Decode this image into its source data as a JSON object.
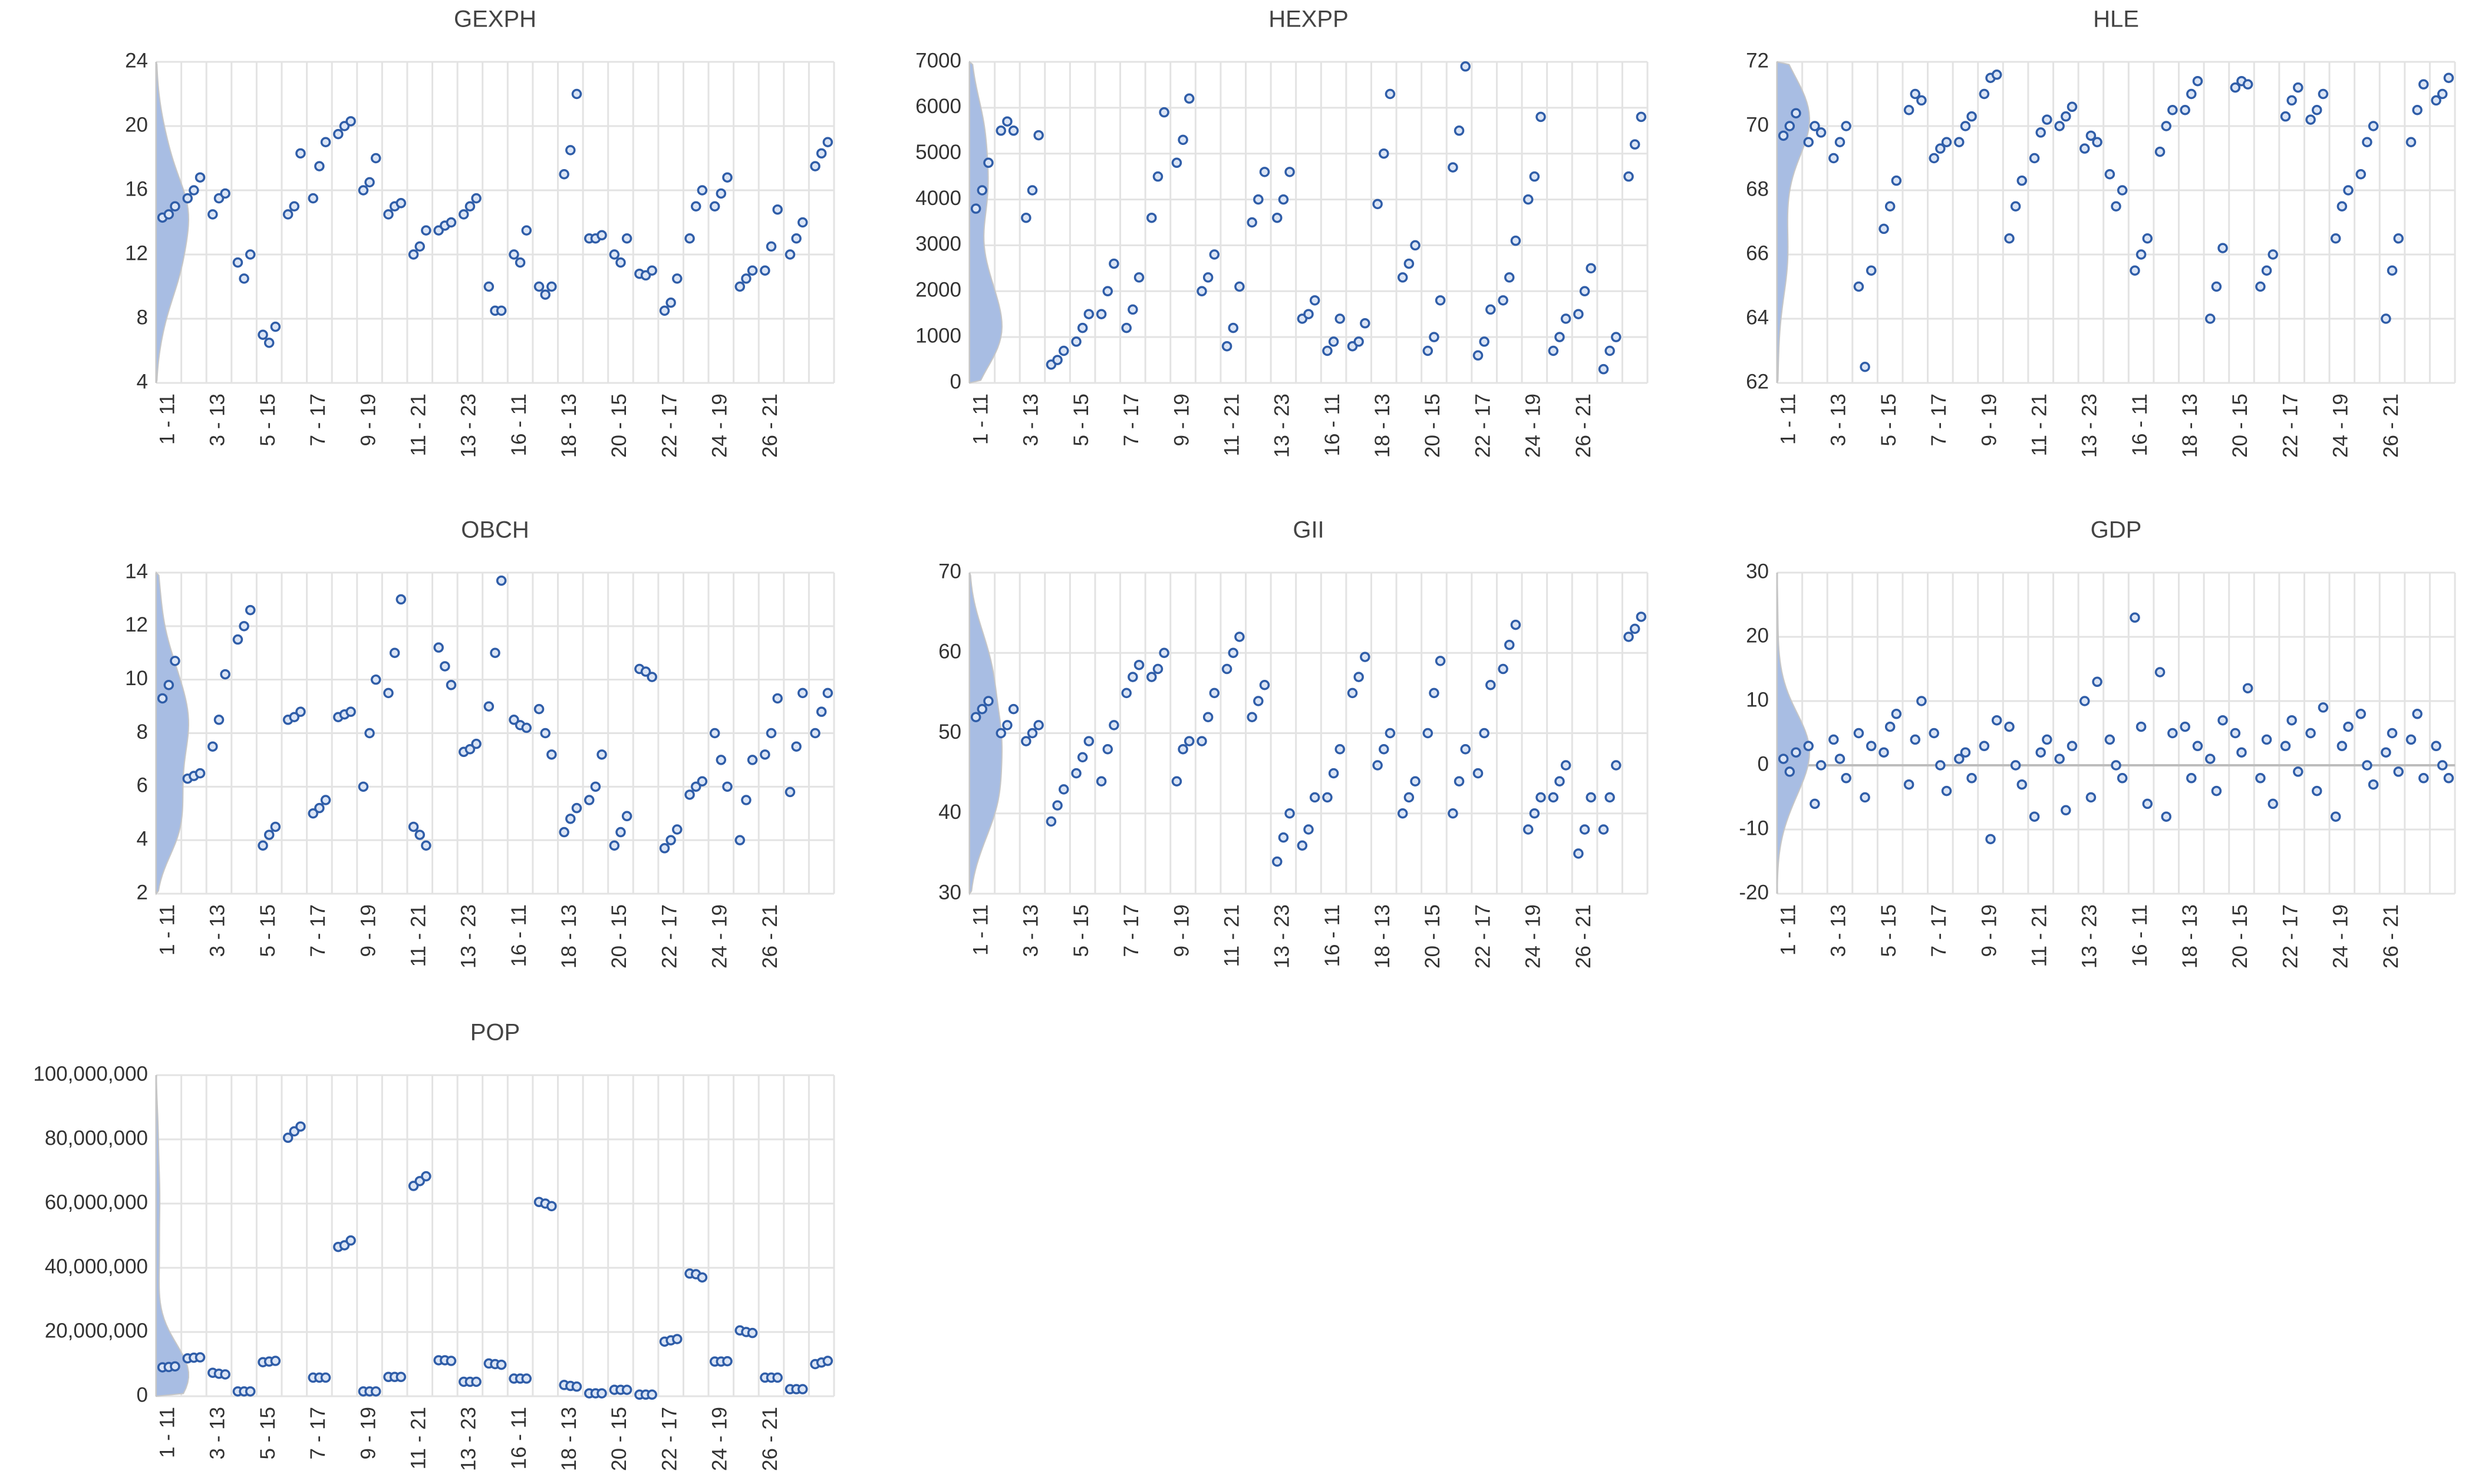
{
  "chart_data": [
    {
      "type": "scatter",
      "title": "GEXPH",
      "categories": [
        "1 - 11",
        null,
        "3 - 13",
        null,
        "5 - 15",
        null,
        "7 - 17",
        null,
        "9 - 19",
        null,
        "11 - 21",
        null,
        "13 - 23",
        null,
        "16 - 11",
        null,
        "18 - 13",
        null,
        "20 - 15",
        null,
        "22 - 17",
        null,
        "24 - 19",
        null,
        "26 - 21",
        null,
        null
      ],
      "values": [
        [
          14.3,
          14.5,
          15
        ],
        [
          15.5,
          16,
          16.8
        ],
        [
          14.5,
          15.5,
          15.8
        ],
        [
          11.5,
          10.5,
          12
        ],
        [
          7,
          6.5,
          7.5
        ],
        [
          14.5,
          15,
          18.3
        ],
        [
          15.5,
          17.5,
          19
        ],
        [
          19.5,
          20,
          20.3
        ],
        [
          16,
          16.5,
          18
        ],
        [
          14.5,
          15,
          15.2
        ],
        [
          12,
          12.5,
          13.5
        ],
        [
          13.5,
          13.8,
          14
        ],
        [
          14.5,
          15,
          15.5
        ],
        [
          10,
          8.5,
          8.5
        ],
        [
          12,
          11.5,
          13.5
        ],
        [
          10,
          9.5,
          10
        ],
        [
          17,
          18.5,
          22
        ],
        [
          13,
          13,
          13.2
        ],
        [
          12,
          11.5,
          13
        ],
        [
          10.8,
          10.7,
          11
        ],
        [
          8.5,
          9,
          10.5
        ],
        [
          13,
          15,
          16
        ],
        [
          15,
          15.8,
          16.8
        ],
        [
          10,
          10.5,
          11
        ],
        [
          11,
          12.5,
          14.8
        ],
        [
          12,
          13,
          14
        ],
        [
          17.5,
          18.3,
          19
        ]
      ],
      "color": "#2f5da8",
      "ylim": [
        4,
        24
      ],
      "yticks": [
        4,
        8,
        12,
        16,
        20,
        24
      ],
      "grid": true
    },
    {
      "type": "scatter",
      "title": "HEXPP",
      "categories": [
        "1 - 11",
        null,
        "3 - 13",
        null,
        "5 - 15",
        null,
        "7 - 17",
        null,
        "9 - 19",
        null,
        "11 - 21",
        null,
        "13 - 23",
        null,
        "16 - 11",
        null,
        "18 - 13",
        null,
        "20 - 15",
        null,
        "22 - 17",
        null,
        "24 - 19",
        null,
        "26 - 21",
        null,
        null
      ],
      "values": [
        [
          3800,
          4200,
          4800
        ],
        [
          5500,
          5700,
          5500
        ],
        [
          3600,
          4200,
          5400
        ],
        [
          400,
          500,
          700
        ],
        [
          900,
          1200,
          1500
        ],
        [
          1500,
          2000,
          2600
        ],
        [
          1200,
          1600,
          2300
        ],
        [
          3600,
          4500,
          5900
        ],
        [
          4800,
          5300,
          6200
        ],
        [
          2000,
          2300,
          2800
        ],
        [
          800,
          1200,
          2100
        ],
        [
          3500,
          4000,
          4600
        ],
        [
          3600,
          4000,
          4600
        ],
        [
          1400,
          1500,
          1800
        ],
        [
          700,
          900,
          1400
        ],
        [
          800,
          900,
          1300
        ],
        [
          3900,
          5000,
          6300
        ],
        [
          2300,
          2600,
          3000
        ],
        [
          700,
          1000,
          1800
        ],
        [
          4700,
          5500,
          6900
        ],
        [
          600,
          900,
          1600
        ],
        [
          1800,
          2300,
          3100
        ],
        [
          4000,
          4500,
          5800
        ],
        [
          700,
          1000,
          1400
        ],
        [
          1500,
          2000,
          2500
        ],
        [
          300,
          700,
          1000
        ],
        [
          4500,
          5200,
          5800
        ]
      ],
      "color": "#2f5da8",
      "ylim": [
        0,
        7000
      ],
      "yticks": [
        0,
        1000,
        2000,
        3000,
        4000,
        5000,
        6000,
        7000
      ],
      "grid": true
    },
    {
      "type": "scatter",
      "title": "HLE",
      "categories": [
        "1 - 11",
        null,
        "3 - 13",
        null,
        "5 - 15",
        null,
        "7 - 17",
        null,
        "9 - 19",
        null,
        "11 - 21",
        null,
        "13 - 23",
        null,
        "16 - 11",
        null,
        "18 - 13",
        null,
        "20 - 15",
        null,
        "22 - 17",
        null,
        "24 - 19",
        null,
        "26 - 21",
        null,
        null
      ],
      "values": [
        [
          69.7,
          70,
          70.4
        ],
        [
          69.5,
          70,
          69.8
        ],
        [
          69,
          69.5,
          70
        ],
        [
          65,
          62.5,
          65.5
        ],
        [
          66.8,
          67.5,
          68.3
        ],
        [
          70.5,
          71,
          70.8
        ],
        [
          69,
          69.3,
          69.5
        ],
        [
          69.5,
          70,
          70.3
        ],
        [
          71,
          71.5,
          71.6
        ],
        [
          66.5,
          67.5,
          68.3
        ],
        [
          69,
          69.8,
          70.2
        ],
        [
          70,
          70.3,
          70.6
        ],
        [
          69.3,
          69.7,
          69.5
        ],
        [
          68.5,
          67.5,
          68
        ],
        [
          65.5,
          66,
          66.5
        ],
        [
          69.2,
          70,
          70.5
        ],
        [
          70.5,
          71,
          71.4
        ],
        [
          64,
          65,
          66.2
        ],
        [
          71.2,
          71.4,
          71.3
        ],
        [
          65,
          65.5,
          66
        ],
        [
          70.3,
          70.8,
          71.2
        ],
        [
          70.2,
          70.5,
          71
        ],
        [
          66.5,
          67.5,
          68
        ],
        [
          68.5,
          69.5,
          70
        ],
        [
          64,
          65.5,
          66.5
        ],
        [
          69.5,
          70.5,
          71.3
        ],
        [
          70.8,
          71,
          71.5
        ]
      ],
      "color": "#2f5da8",
      "ylim": [
        62,
        72
      ],
      "yticks": [
        62,
        64,
        66,
        68,
        70,
        72
      ],
      "grid": true
    },
    {
      "type": "scatter",
      "title": "OBCH",
      "categories": [
        "1 - 11",
        null,
        "3 - 13",
        null,
        "5 - 15",
        null,
        "7 - 17",
        null,
        "9 - 19",
        null,
        "11 - 21",
        null,
        "13 - 23",
        null,
        "16 - 11",
        null,
        "18 - 13",
        null,
        "20 - 15",
        null,
        "22 - 17",
        null,
        "24 - 19",
        null,
        "26 - 21",
        null,
        null
      ],
      "values": [
        [
          9.3,
          9.8,
          10.7
        ],
        [
          6.3,
          6.4,
          6.5
        ],
        [
          7.5,
          8.5,
          10.2
        ],
        [
          11.5,
          12,
          12.6
        ],
        [
          3.8,
          4.2,
          4.5
        ],
        [
          8.5,
          8.6,
          8.8
        ],
        [
          5,
          5.2,
          5.5
        ],
        [
          8.6,
          8.7,
          8.8
        ],
        [
          6,
          8,
          10
        ],
        [
          9.5,
          11,
          13
        ],
        [
          4.5,
          4.2,
          3.8
        ],
        [
          11.2,
          10.5,
          9.8
        ],
        [
          7.3,
          7.4,
          7.6
        ],
        [
          9,
          11,
          13.7
        ],
        [
          8.5,
          8.3,
          8.2
        ],
        [
          8.9,
          8,
          7.2
        ],
        [
          4.3,
          4.8,
          5.2
        ],
        [
          5.5,
          6,
          7.2
        ],
        [
          3.8,
          4.3,
          4.9
        ],
        [
          10.4,
          10.3,
          10.1
        ],
        [
          3.7,
          4,
          4.4
        ],
        [
          5.7,
          6,
          6.2
        ],
        [
          8,
          7,
          6
        ],
        [
          4,
          5.5,
          7
        ],
        [
          7.2,
          8,
          9.3
        ],
        [
          5.8,
          7.5,
          9.5
        ],
        [
          8,
          8.8,
          9.5
        ]
      ],
      "color": "#2f5da8",
      "ylim": [
        2,
        14
      ],
      "yticks": [
        2,
        4,
        6,
        8,
        10,
        12,
        14
      ],
      "grid": true
    },
    {
      "type": "scatter",
      "title": "GII",
      "categories": [
        "1 - 11",
        null,
        "3 - 13",
        null,
        "5 - 15",
        null,
        "7 - 17",
        null,
        "9 - 19",
        null,
        "11 - 21",
        null,
        "13 - 23",
        null,
        "16 - 11",
        null,
        "18 - 13",
        null,
        "20 - 15",
        null,
        "22 - 17",
        null,
        "24 - 19",
        null,
        "26 - 21",
        null,
        null
      ],
      "values": [
        [
          52,
          53,
          54
        ],
        [
          50,
          51,
          53
        ],
        [
          49,
          50,
          51
        ],
        [
          39,
          41,
          43
        ],
        [
          45,
          47,
          49
        ],
        [
          44,
          48,
          51
        ],
        [
          55,
          57,
          58.5
        ],
        [
          57,
          58,
          60
        ],
        [
          44,
          48,
          49
        ],
        [
          49,
          52,
          55
        ],
        [
          58,
          60,
          62
        ],
        [
          52,
          54,
          56
        ],
        [
          34,
          37,
          40
        ],
        [
          36,
          38,
          42
        ],
        [
          42,
          45,
          48
        ],
        [
          55,
          57,
          59.5
        ],
        [
          46,
          48,
          50
        ],
        [
          40,
          42,
          44
        ],
        [
          50,
          55,
          59
        ],
        [
          40,
          44,
          48
        ],
        [
          45,
          50,
          56
        ],
        [
          58,
          61,
          63.5
        ],
        [
          38,
          40,
          42
        ],
        [
          42,
          44,
          46
        ],
        [
          35,
          38,
          42
        ],
        [
          38,
          42,
          46
        ],
        [
          62,
          63,
          64.5
        ]
      ],
      "color": "#2f5da8",
      "ylim": [
        30,
        70
      ],
      "yticks": [
        30,
        40,
        50,
        60,
        70
      ],
      "grid": true
    },
    {
      "type": "scatter",
      "title": "GDP",
      "categories": [
        "1 - 11",
        null,
        "3 - 13",
        null,
        "5 - 15",
        null,
        "7 - 17",
        null,
        "9 - 19",
        null,
        "11 - 21",
        null,
        "13 - 23",
        null,
        "16 - 11",
        null,
        "18 - 13",
        null,
        "20 - 15",
        null,
        "22 - 17",
        null,
        "24 - 19",
        null,
        "26 - 21",
        null,
        null
      ],
      "values": [
        [
          1,
          -1,
          2
        ],
        [
          3,
          -6,
          0
        ],
        [
          4,
          1,
          -2
        ],
        [
          5,
          -5,
          3
        ],
        [
          2,
          6,
          8
        ],
        [
          -3,
          4,
          10
        ],
        [
          5,
          0,
          -4
        ],
        [
          1,
          2,
          -2
        ],
        [
          3,
          -11.5,
          7
        ],
        [
          6,
          0,
          -3
        ],
        [
          -8,
          2,
          4
        ],
        [
          1,
          -7,
          3
        ],
        [
          10,
          -5,
          13
        ],
        [
          4,
          0,
          -2
        ],
        [
          23,
          6,
          -6
        ],
        [
          14.5,
          -8,
          5
        ],
        [
          6,
          -2,
          3
        ],
        [
          1,
          -4,
          7
        ],
        [
          5,
          2,
          12
        ],
        [
          -2,
          4,
          -6
        ],
        [
          3,
          7,
          -1
        ],
        [
          5,
          -4,
          9
        ],
        [
          -8,
          3,
          6
        ],
        [
          8,
          0,
          -3
        ],
        [
          2,
          5,
          -1
        ],
        [
          4,
          8,
          -2
        ],
        [
          3,
          0,
          -2
        ]
      ],
      "color": "#2f5da8",
      "ylim": [
        -20,
        30
      ],
      "yticks": [
        -20,
        -10,
        0,
        10,
        20,
        30
      ],
      "grid": true
    },
    {
      "type": "scatter",
      "title": "POP",
      "categories": [
        "1 - 11",
        null,
        "3 - 13",
        null,
        "5 - 15",
        null,
        "7 - 17",
        null,
        "9 - 19",
        null,
        "11 - 21",
        null,
        "13 - 23",
        null,
        "16 - 11",
        null,
        "18 - 13",
        null,
        "20 - 15",
        null,
        "22 - 17",
        null,
        "24 - 19",
        null,
        "26 - 21",
        null,
        null
      ],
      "values": [
        [
          9000000,
          9100000,
          9300000
        ],
        [
          11800000,
          12000000,
          12100000
        ],
        [
          7300000,
          7000000,
          6800000
        ],
        [
          1500000,
          1500000,
          1500000
        ],
        [
          10600000,
          10800000,
          11000000
        ],
        [
          80500000,
          82500000,
          84000000
        ],
        [
          5800000,
          5800000,
          5800000
        ],
        [
          46500000,
          47000000,
          48500000
        ],
        [
          1500000,
          1500000,
          1500000
        ],
        [
          6000000,
          6000000,
          6000000
        ],
        [
          65500000,
          67000000,
          68500000
        ],
        [
          11200000,
          11200000,
          11000000
        ],
        [
          4500000,
          4500000,
          4500000
        ],
        [
          10200000,
          10000000,
          9800000
        ],
        [
          5500000,
          5500000,
          5500000
        ],
        [
          60500000,
          60000000,
          59200000
        ],
        [
          3500000,
          3200000,
          3000000
        ],
        [
          900000,
          900000,
          900000
        ],
        [
          2000000,
          2000000,
          2000000
        ],
        [
          500000,
          500000,
          500000
        ],
        [
          17000000,
          17400000,
          17800000
        ],
        [
          38200000,
          38000000,
          37000000
        ],
        [
          10800000,
          10800000,
          10900000
        ],
        [
          20500000,
          20000000,
          19700000
        ],
        [
          5800000,
          5800000,
          5800000
        ],
        [
          2200000,
          2200000,
          2200000
        ],
        [
          10000000,
          10500000,
          11000000
        ]
      ],
      "color": "#2f5da8",
      "ylim": [
        0,
        100000000
      ],
      "yticks": [
        0,
        {
          "value": 20000000,
          "label": "20,000,000"
        },
        {
          "value": 40000000,
          "label": "40,000,000"
        },
        {
          "value": 60000000,
          "label": "60,000,000"
        },
        {
          "value": 80000000,
          "label": "80,000,000"
        },
        {
          "value": 100000000,
          "label": "100,000,000"
        }
      ],
      "grid": true
    }
  ]
}
